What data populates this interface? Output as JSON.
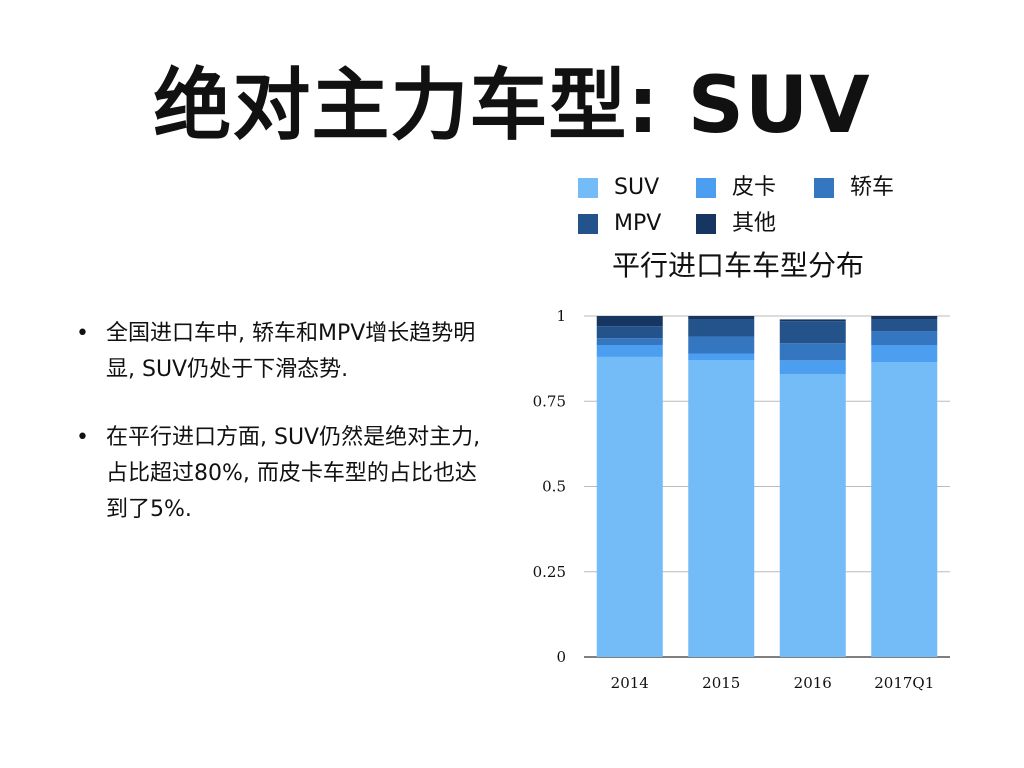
{
  "slide": {
    "title": "绝对主力车型: SUV",
    "bullets": [
      "全国进口车中, 轿车和MPV增长趋势明显, SUV仍处于下滑态势.",
      "在平行进口方面, SUV仍然是绝对主力, 占比超过80%, 而皮卡车型的占比也达到了5%."
    ],
    "bullet_marker": "•"
  },
  "chart_data": {
    "type": "bar",
    "stacked": true,
    "title": "平行进口车车型分布",
    "categories": [
      "2014",
      "2015",
      "2016",
      "2017Q1"
    ],
    "series": [
      {
        "name": "SUV",
        "color": "#74bcf7",
        "values": [
          0.88,
          0.87,
          0.83,
          0.865
        ]
      },
      {
        "name": "皮卡",
        "color": "#4c9ef0",
        "values": [
          0.035,
          0.02,
          0.04,
          0.05
        ]
      },
      {
        "name": "轿车",
        "color": "#3477c0",
        "values": [
          0.02,
          0.05,
          0.05,
          0.04
        ]
      },
      {
        "name": "MPV",
        "color": "#24528a",
        "values": [
          0.035,
          0.05,
          0.065,
          0.035
        ]
      },
      {
        "name": "其他",
        "color": "#163561",
        "values": [
          0.03,
          0.01,
          0.005,
          0.01
        ]
      }
    ],
    "ylim": [
      0,
      1
    ],
    "yticks": [
      0,
      0.25,
      0.5,
      0.75,
      1
    ],
    "ytick_labels": [
      "0",
      "0.25",
      "0.5",
      "0.75",
      "1"
    ],
    "grid": true,
    "legend_position": "top"
  }
}
